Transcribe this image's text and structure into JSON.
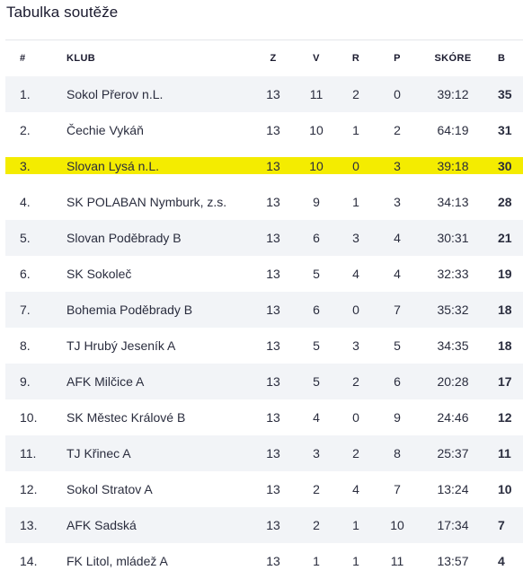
{
  "title": "Tabulka soutěže",
  "colors": {
    "highlight": "#f4ec00",
    "stripe": "#f2f4f7",
    "text": "#2a2d3e"
  },
  "headers": {
    "rank": "#",
    "club": "KLUB",
    "z": "Z",
    "v": "V",
    "r": "R",
    "p": "P",
    "score": "SKÓRE",
    "b": "B"
  },
  "rows": [
    {
      "rank": "1.",
      "club": "Sokol Přerov n.L.",
      "z": "13",
      "v": "11",
      "r": "2",
      "p": "0",
      "score": "39:12",
      "b": "35"
    },
    {
      "rank": "2.",
      "club": "Čechie Vykáň",
      "z": "13",
      "v": "10",
      "r": "1",
      "p": "2",
      "score": "64:19",
      "b": "31"
    },
    {
      "rank": "3.",
      "club": "Slovan Lysá n.L.",
      "z": "13",
      "v": "10",
      "r": "0",
      "p": "3",
      "score": "39:18",
      "b": "30"
    },
    {
      "rank": "4.",
      "club": "SK POLABAN Nymburk, z.s.",
      "z": "13",
      "v": "9",
      "r": "1",
      "p": "3",
      "score": "34:13",
      "b": "28"
    },
    {
      "rank": "5.",
      "club": "Slovan Poděbrady B",
      "z": "13",
      "v": "6",
      "r": "3",
      "p": "4",
      "score": "30:31",
      "b": "21"
    },
    {
      "rank": "6.",
      "club": "SK Sokoleč",
      "z": "13",
      "v": "5",
      "r": "4",
      "p": "4",
      "score": "32:33",
      "b": "19"
    },
    {
      "rank": "7.",
      "club": "Bohemia Poděbrady B",
      "z": "13",
      "v": "6",
      "r": "0",
      "p": "7",
      "score": "35:32",
      "b": "18"
    },
    {
      "rank": "8.",
      "club": "TJ Hrubý Jeseník A",
      "z": "13",
      "v": "5",
      "r": "3",
      "p": "5",
      "score": "34:35",
      "b": "18"
    },
    {
      "rank": "9.",
      "club": "AFK Milčice A",
      "z": "13",
      "v": "5",
      "r": "2",
      "p": "6",
      "score": "20:28",
      "b": "17"
    },
    {
      "rank": "10.",
      "club": "SK Městec Králové B",
      "z": "13",
      "v": "4",
      "r": "0",
      "p": "9",
      "score": "24:46",
      "b": "12"
    },
    {
      "rank": "11.",
      "club": "TJ Křinec A",
      "z": "13",
      "v": "3",
      "r": "2",
      "p": "8",
      "score": "25:37",
      "b": "11"
    },
    {
      "rank": "12.",
      "club": "Sokol Stratov A",
      "z": "13",
      "v": "2",
      "r": "4",
      "p": "7",
      "score": "13:24",
      "b": "10"
    },
    {
      "rank": "13.",
      "club": "AFK Sadská",
      "z": "13",
      "v": "2",
      "r": "1",
      "p": "10",
      "score": "17:34",
      "b": "7"
    },
    {
      "rank": "14.",
      "club": "FK Litol, mládež A",
      "z": "13",
      "v": "1",
      "r": "1",
      "p": "11",
      "score": "13:57",
      "b": "4"
    }
  ]
}
